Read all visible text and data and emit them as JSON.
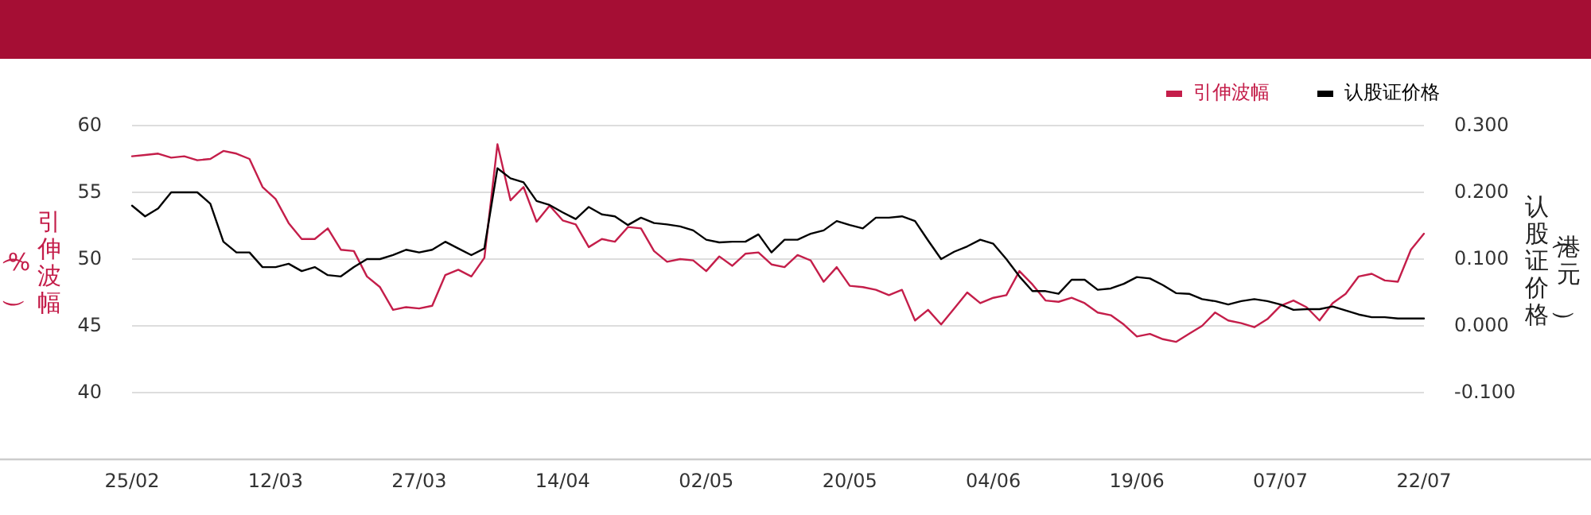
{
  "chart_data": {
    "type": "line",
    "categories": [
      "25/02",
      null,
      null,
      null,
      null,
      null,
      null,
      null,
      null,
      null,
      null,
      "12/03",
      null,
      null,
      null,
      null,
      null,
      null,
      null,
      null,
      null,
      null,
      "27/03",
      null,
      null,
      null,
      null,
      null,
      null,
      null,
      null,
      null,
      null,
      "14/04",
      null,
      null,
      null,
      null,
      null,
      null,
      null,
      null,
      null,
      null,
      "02/05",
      null,
      null,
      null,
      null,
      null,
      null,
      null,
      null,
      null,
      null,
      "20/05",
      null,
      null,
      null,
      null,
      null,
      null,
      null,
      null,
      null,
      null,
      "04/06",
      null,
      null,
      null,
      null,
      null,
      null,
      null,
      null,
      null,
      null,
      "19/06",
      null,
      null,
      null,
      null,
      null,
      null,
      null,
      null,
      null,
      null,
      "07/07",
      null,
      null,
      null,
      null,
      null,
      null,
      null,
      null,
      null,
      null,
      "22/07"
    ],
    "series": [
      {
        "name": "引伸波幅",
        "color": "#c41e4a",
        "values": [
          57.7,
          57.8,
          57.9,
          57.6,
          57.7,
          57.4,
          57.5,
          58.1,
          57.9,
          57.5,
          55.4,
          54.5,
          52.7,
          51.5,
          51.5,
          52.3,
          50.7,
          50.6,
          48.7,
          47.9,
          46.2,
          46.4,
          46.3,
          46.5,
          48.8,
          49.2,
          48.7,
          50.1,
          58.6,
          54.4,
          55.4,
          52.8,
          54.0,
          52.9,
          52.6,
          50.9,
          51.5,
          51.3,
          52.4,
          52.3,
          50.6,
          49.8,
          50.0,
          49.9,
          49.1,
          50.2,
          49.5,
          50.4,
          50.5,
          49.6,
          49.4,
          50.3,
          49.9,
          48.3,
          49.4,
          48.0,
          47.9,
          47.7,
          47.3,
          47.7,
          45.4,
          46.2,
          45.1,
          46.3,
          47.5,
          46.7,
          47.1,
          47.3,
          49.1,
          48.1,
          46.9,
          46.8,
          47.1,
          46.7,
          46.0,
          45.8,
          45.1,
          44.2,
          44.4,
          44.0,
          43.8,
          44.4,
          45.0,
          46.0,
          45.4,
          45.2,
          44.9,
          45.5,
          46.5,
          46.9,
          46.4,
          45.4,
          46.7,
          47.4,
          48.7,
          48.9,
          48.4,
          48.3,
          50.7,
          51.9
        ]
      },
      {
        "name": "认股证价格",
        "color": "#000000",
        "axis": "y2",
        "values": [
          0.18,
          0.164,
          0.176,
          0.2,
          0.2,
          0.2,
          0.183,
          0.126,
          0.11,
          0.11,
          0.088,
          0.088,
          0.093,
          0.082,
          0.088,
          0.076,
          0.074,
          0.088,
          0.1,
          0.1,
          0.106,
          0.114,
          0.11,
          0.114,
          0.126,
          0.116,
          0.106,
          0.116,
          0.236,
          0.221,
          0.215,
          0.187,
          0.181,
          0.17,
          0.16,
          0.178,
          0.167,
          0.164,
          0.151,
          0.162,
          0.154,
          0.152,
          0.149,
          0.143,
          0.129,
          0.125,
          0.126,
          0.126,
          0.137,
          0.11,
          0.129,
          0.129,
          0.138,
          0.143,
          0.157,
          0.151,
          0.146,
          0.162,
          0.162,
          0.164,
          0.157,
          0.128,
          0.1,
          0.111,
          0.119,
          0.129,
          0.123,
          0.1,
          0.074,
          0.052,
          0.052,
          0.048,
          0.069,
          0.069,
          0.054,
          0.056,
          0.063,
          0.073,
          0.071,
          0.061,
          0.049,
          0.048,
          0.04,
          0.037,
          0.032,
          0.037,
          0.04,
          0.037,
          0.032,
          0.024,
          0.025,
          0.025,
          0.029,
          0.023,
          0.017,
          0.013,
          0.013,
          0.011,
          0.011,
          0.011
        ]
      }
    ],
    "ylabel": "引伸波幅（%）",
    "y2label": "认股证价格（港元）",
    "ylim": [
      35,
      60
    ],
    "yticks": [
      40,
      45,
      50,
      55,
      60
    ],
    "y2lim": [
      -0.2,
      0.3
    ],
    "y2ticks": [
      {
        "value": -0.1,
        "label": "-0.100"
      },
      {
        "value": 0,
        "label": "0.000"
      },
      {
        "value": 0.1,
        "label": "0.100"
      },
      {
        "value": 0.2,
        "label": "0.200"
      },
      {
        "value": 0.3,
        "label": "0.300"
      }
    ],
    "grid": "y",
    "legend": "top right"
  }
}
